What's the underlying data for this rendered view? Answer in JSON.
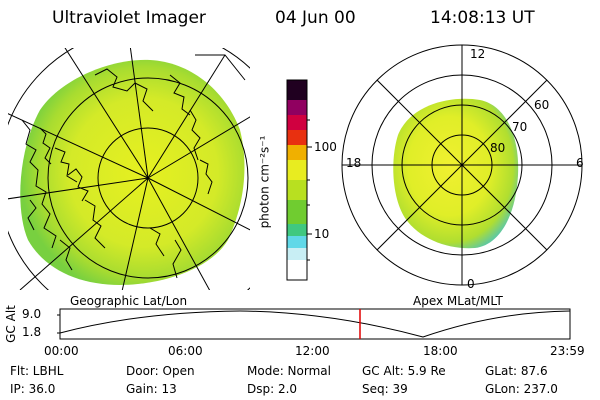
{
  "header": {
    "title": "Ultraviolet Imager",
    "date": "04 Jun 00",
    "time": "14:08:13 UT"
  },
  "geo_panel": {
    "label": "Geographic Lat/Lon"
  },
  "apex_panel": {
    "label": "Apex MLat/MLT",
    "mlt_labels": {
      "top": "12",
      "left": "18",
      "right": "6",
      "bottom": "0"
    },
    "lat_labels": [
      "60",
      "70",
      "80"
    ]
  },
  "colorbar": {
    "unit_label": "photon cm⁻²s⁻¹",
    "ticks": [
      "100",
      "10"
    ],
    "colors": [
      "#ffffff",
      "#b8e8f0",
      "#40d0e0",
      "#30c070",
      "#80d020",
      "#d0ec20",
      "#f0e000",
      "#f0a000",
      "#e02000",
      "#c00060",
      "#600060",
      "#000030"
    ]
  },
  "altitude_panel": {
    "axis_label": "GC Alt",
    "y_ticks": [
      "9.0",
      "1.8"
    ],
    "x_ticks": [
      "00:00",
      "06:00",
      "12:00",
      "18:00",
      "23:59"
    ],
    "marker_time": "14:08",
    "marker_color": "#e00000"
  },
  "status": {
    "flt": "Flt: LBHL",
    "ip": "IP: 36.0",
    "door": "Door: Open",
    "gain": "Gain: 13",
    "mode": "Mode: Normal",
    "dsp": "Dsp:   2.0",
    "gc_alt": "GC Alt: 5.9 Re",
    "seq": "Seq: 39",
    "glat": "GLat:  87.6",
    "glon": "GLon: 237.0"
  }
}
